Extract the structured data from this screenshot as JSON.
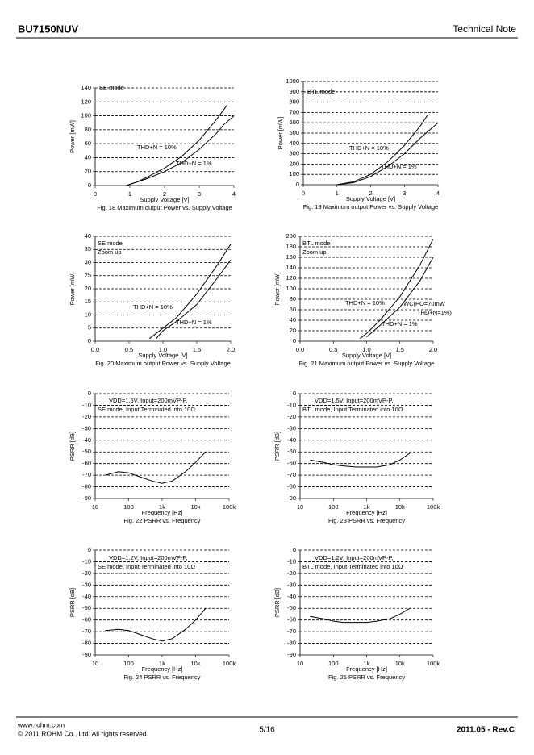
{
  "header": {
    "part_number": "BU7150NUV",
    "doc_type": "Technical Note"
  },
  "footer": {
    "website": "www.rohm.com",
    "copyright": "© 2011 ROHM Co., Ltd. All rights reserved.",
    "page": "5/16",
    "revision": "2011.05 - Rev.C"
  },
  "chart_data": [
    {
      "type": "line",
      "title": "Fig. 18 Maximum output Power vs. Supply Voltage",
      "x_label": "Supply Voltage [V]",
      "y_label": "Power [mW]",
      "xlim": [
        0,
        4
      ],
      "xticks": [
        0,
        1,
        2,
        3,
        4
      ],
      "ylim": [
        0,
        140
      ],
      "yticks": [
        0,
        20,
        40,
        60,
        80,
        100,
        120,
        140
      ],
      "grid": true,
      "log_x": false,
      "annotations": [
        "SE mode"
      ],
      "series": [
        {
          "name": "THD+N = 10%",
          "color": "#000000",
          "x": [
            0.9,
            1.2,
            1.5,
            2,
            2.5,
            3,
            3.5,
            3.8
          ],
          "values": [
            0,
            5,
            12,
            25,
            42,
            65,
            95,
            115
          ]
        },
        {
          "name": "THD+N = 1%",
          "color": "#000000",
          "x": [
            0.9,
            1.5,
            2,
            2.5,
            3,
            3.5,
            3.7,
            4
          ],
          "values": [
            0,
            10,
            20,
            33,
            52,
            75,
            87,
            100
          ]
        }
      ]
    },
    {
      "type": "line",
      "title": "Fig. 19 Maximum output Power vs. Supply Voltage",
      "x_label": "Supply Voltage [V]",
      "y_label": "Power [mW]",
      "xlim": [
        0,
        4
      ],
      "xticks": [
        0,
        1,
        2,
        3,
        4
      ],
      "ylim": [
        0,
        1000
      ],
      "yticks": [
        0,
        100,
        200,
        300,
        400,
        500,
        600,
        700,
        800,
        900,
        1000
      ],
      "grid": true,
      "log_x": false,
      "annotations": [
        "BTL mode"
      ],
      "series": [
        {
          "name": "THD+N = 10%",
          "color": "#000000",
          "x": [
            1,
            1.5,
            2,
            2.5,
            3,
            3.5,
            3.7
          ],
          "values": [
            0,
            30,
            100,
            220,
            380,
            580,
            680
          ]
        },
        {
          "name": "THD+N = 1%",
          "color": "#000000",
          "x": [
            1,
            1.5,
            2,
            2.5,
            3,
            3.5,
            4
          ],
          "values": [
            0,
            20,
            80,
            175,
            300,
            460,
            600
          ]
        }
      ]
    },
    {
      "type": "line",
      "title": "Fig. 20 Maximum output Power vs. Supply Voltage",
      "x_label": "Supply Voltage [V]",
      "y_label": "Power [mW]",
      "xlim": [
        0,
        2
      ],
      "xticks": [
        {
          "value": 0,
          "label": "0.0"
        },
        0.5,
        {
          "value": 1,
          "label": "1.0"
        },
        1.5,
        {
          "value": 2,
          "label": "2.0"
        }
      ],
      "ylim": [
        0,
        40
      ],
      "yticks": [
        0,
        5,
        10,
        15,
        20,
        25,
        30,
        35,
        40
      ],
      "grid": true,
      "log_x": false,
      "annotations": [
        "SE mode",
        "Zoom up"
      ],
      "series": [
        {
          "name": "THD+N = 10%",
          "color": "#000000",
          "x": [
            0.8,
            1,
            1.2,
            1.5,
            1.8,
            2
          ],
          "values": [
            1,
            5,
            9,
            18,
            29,
            37
          ]
        },
        {
          "name": "THD+N = 1%",
          "color": "#000000",
          "x": [
            0.9,
            1,
            1.2,
            1.5,
            1.8,
            2
          ],
          "values": [
            1,
            4,
            7.5,
            14,
            24,
            31
          ]
        }
      ]
    },
    {
      "type": "line",
      "title": "Fig. 21 Maximum output Power vs. Supply Voltage",
      "x_label": "Supply Voltage [V]",
      "y_label": "Power [mW]",
      "xlim": [
        0,
        2
      ],
      "xticks": [
        {
          "value": 0,
          "label": "0.0"
        },
        0.5,
        {
          "value": 1,
          "label": "1.0"
        },
        1.5,
        {
          "value": 2,
          "label": "2.0"
        }
      ],
      "ylim": [
        0,
        200
      ],
      "yticks": [
        0,
        20,
        40,
        60,
        80,
        100,
        120,
        140,
        160,
        180,
        200
      ],
      "grid": true,
      "log_x": false,
      "annotations": [
        "BTL mode",
        "Zoom up",
        "WC(PO=70mW",
        "THD+N=1%)"
      ],
      "series": [
        {
          "name": "THD+N = 10%",
          "color": "#000000",
          "x": [
            0.9,
            1,
            1.2,
            1.5,
            1.8,
            2
          ],
          "values": [
            5,
            15,
            40,
            85,
            145,
            195
          ]
        },
        {
          "name": "THD+N = 1%",
          "color": "#000000",
          "x": [
            1,
            1.2,
            1.5,
            1.8,
            2
          ],
          "values": [
            8,
            30,
            65,
            115,
            160
          ]
        }
      ]
    },
    {
      "type": "line",
      "title": "Fig. 22 PSRR vs. Frequency",
      "x_label": "Frequency [Hz]",
      "y_label": "PSRR [dB]",
      "xlim": [
        10,
        100000
      ],
      "xticks": [
        10,
        100,
        {
          "value": 1000,
          "label": "1k"
        },
        {
          "value": 10000,
          "label": "10k"
        },
        {
          "value": 100000,
          "label": "100k"
        }
      ],
      "ylim": [
        -90,
        0
      ],
      "yticks": [
        0,
        -10,
        -20,
        -30,
        -40,
        -50,
        -60,
        -70,
        -80,
        -90
      ],
      "grid": true,
      "log_x": true,
      "annotations": [
        "VDD=1.5V, Input=200mVP-P,",
        "SE mode, Input Terminated into 10Ω"
      ],
      "series": [
        {
          "name": null,
          "color": "#000000",
          "x": [
            20,
            50,
            100,
            200,
            500,
            1000,
            2000,
            5000,
            10000,
            20000
          ],
          "values": [
            -70,
            -67,
            -68,
            -71,
            -75,
            -77,
            -75,
            -67,
            -59,
            -50
          ]
        }
      ]
    },
    {
      "type": "line",
      "title": "Fig. 23 PSRR vs. Frequency",
      "x_label": "Frequency [Hz]",
      "y_label": "PSRR [dB]",
      "xlim": [
        10,
        100000
      ],
      "xticks": [
        10,
        100,
        {
          "value": 1000,
          "label": "1k"
        },
        {
          "value": 10000,
          "label": "10k"
        },
        {
          "value": 100000,
          "label": "100k"
        }
      ],
      "ylim": [
        -90,
        0
      ],
      "yticks": [
        0,
        -10,
        -20,
        -30,
        -40,
        -50,
        -60,
        -70,
        -80,
        -90
      ],
      "grid": true,
      "log_x": true,
      "annotations": [
        "VDD=1.5V, Input=200mVP-P,",
        "BTL mode, Input Terminated into 10Ω"
      ],
      "series": [
        {
          "name": null,
          "color": "#000000",
          "x": [
            20,
            50,
            100,
            200,
            500,
            1000,
            2000,
            5000,
            10000,
            20000
          ],
          "values": [
            -57,
            -59,
            -61,
            -62,
            -63,
            -63,
            -63,
            -61,
            -57,
            -51
          ]
        }
      ]
    },
    {
      "type": "line",
      "title": "Fig. 24 PSRR vs. Frequency",
      "x_label": "Frequency [Hz]",
      "y_label": "PSRR [dB]",
      "xlim": [
        10,
        100000
      ],
      "xticks": [
        10,
        100,
        {
          "value": 1000,
          "label": "1k"
        },
        {
          "value": 10000,
          "label": "10k"
        },
        {
          "value": 100000,
          "label": "100k"
        }
      ],
      "ylim": [
        -90,
        0
      ],
      "yticks": [
        0,
        -10,
        -20,
        -30,
        -40,
        -50,
        -60,
        -70,
        -80,
        -90
      ],
      "grid": true,
      "log_x": true,
      "annotations": [
        "VDD=1.2V, Input=200mVP-P,",
        "SE mode, Input Terminated into 10Ω"
      ],
      "series": [
        {
          "name": null,
          "color": "#000000",
          "x": [
            20,
            50,
            100,
            200,
            500,
            1000,
            2000,
            5000,
            10000,
            20000
          ],
          "values": [
            -69,
            -68,
            -69,
            -72,
            -76,
            -78,
            -76,
            -68,
            -60,
            -50
          ]
        }
      ]
    },
    {
      "type": "line",
      "title": "Fig. 25 PSRR vs. Frequency",
      "x_label": "Frequency [Hz]",
      "y_label": "PSRR [dB]",
      "xlim": [
        10,
        100000
      ],
      "xticks": [
        10,
        100,
        {
          "value": 1000,
          "label": "1k"
        },
        {
          "value": 10000,
          "label": "10k"
        },
        {
          "value": 100000,
          "label": "100k"
        }
      ],
      "ylim": [
        -90,
        0
      ],
      "yticks": [
        0,
        -10,
        -20,
        -30,
        -40,
        -50,
        -60,
        -70,
        -80,
        -90
      ],
      "grid": true,
      "log_x": true,
      "annotations": [
        "VDD=1.2V, Input=200mVP-P,",
        "BTL mode, Input Terminated into 10Ω"
      ],
      "series": [
        {
          "name": null,
          "color": "#000000",
          "x": [
            20,
            50,
            100,
            200,
            500,
            1000,
            2000,
            5000,
            10000,
            20000
          ],
          "values": [
            -57,
            -59,
            -61,
            -62,
            -62,
            -62,
            -61,
            -59,
            -55,
            -50
          ]
        }
      ]
    }
  ]
}
